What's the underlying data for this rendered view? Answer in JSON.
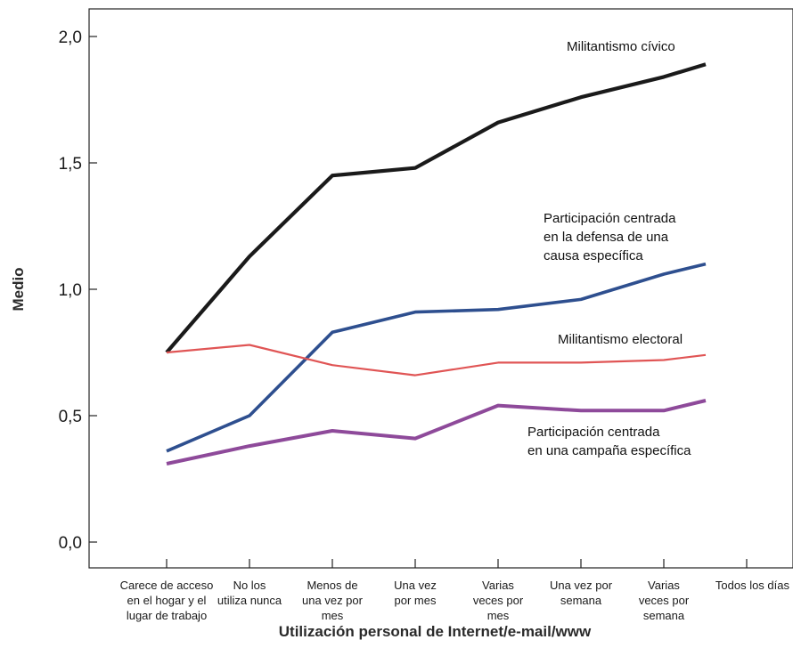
{
  "chart_data": {
    "type": "line",
    "xlabel": "Utilización personal de Internet/e-mail/www",
    "ylabel": "Medio",
    "ylim": [
      0.0,
      2.0
    ],
    "yticks": [
      "0,0",
      "0,5",
      "1,0",
      "1,5",
      "2,0"
    ],
    "ytick_values": [
      0.0,
      0.5,
      1.0,
      1.5,
      2.0
    ],
    "categories": [
      [
        "Carece de acceso",
        "en el hogar y el",
        "lugar de trabajo"
      ],
      [
        "No los",
        "utiliza nunca"
      ],
      [
        "Menos de",
        "una vez por",
        "mes"
      ],
      [
        "Una vez",
        "por mes"
      ],
      [
        "Varias",
        "veces por",
        "mes"
      ],
      [
        "Una vez por",
        "semana"
      ],
      [
        "Varias",
        "veces por",
        "semana"
      ],
      [
        "Todos los días"
      ]
    ],
    "series": [
      {
        "name": [
          "Militantismo cívico"
        ],
        "color": "#1a1a1a",
        "values": [
          0.75,
          1.13,
          1.45,
          1.48,
          1.66,
          1.76,
          1.84,
          1.89
        ]
      },
      {
        "name": [
          "Participación centrada",
          "en la defensa de una",
          "causa específica"
        ],
        "color": "#2e4f8f",
        "values": [
          0.36,
          0.5,
          0.83,
          0.91,
          0.92,
          0.96,
          1.06,
          1.1
        ]
      },
      {
        "name": [
          "Militantismo electoral"
        ],
        "color": "#e05555",
        "values": [
          0.75,
          0.78,
          0.7,
          0.66,
          0.71,
          0.71,
          0.72,
          0.74
        ]
      },
      {
        "name": [
          "Participación centrada",
          "en una campaña específica"
        ],
        "color": "#8e4a9a",
        "values": [
          0.31,
          0.38,
          0.44,
          0.41,
          0.54,
          0.52,
          0.52,
          0.56
        ]
      }
    ]
  }
}
